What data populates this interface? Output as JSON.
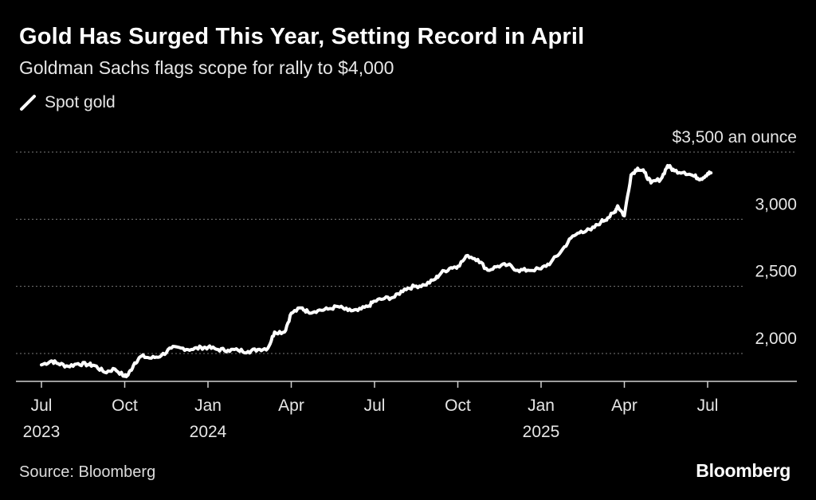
{
  "title": "Gold Has Surged This Year, Setting Record in April",
  "subtitle": "Goldman Sachs flags scope for rally to $4,000",
  "source": "Source: Bloomberg",
  "brand": "Bloomberg",
  "colors": {
    "background": "#000000",
    "line": "#ffffff",
    "grid": "#7a7a7a",
    "text": "#e6e6e6"
  },
  "chart_data": {
    "type": "line",
    "title": "Gold Has Surged This Year, Setting Record in April",
    "subtitle": "Goldman Sachs flags scope for rally to $4,000",
    "xlabel": "",
    "ylabel": "",
    "ylim": [
      1720,
      3500
    ],
    "xlim": [
      2023.5,
      2025.7
    ],
    "grid": true,
    "legend": "top-left",
    "y_unit_label": "an ounce",
    "yticks": [
      {
        "value": 3500,
        "label": "$3,500 an ounce"
      },
      {
        "value": 3000,
        "label": "3,000"
      },
      {
        "value": 2500,
        "label": "2,500"
      },
      {
        "value": 2000,
        "label": "2,000"
      }
    ],
    "xticks": [
      {
        "value": 2023.5,
        "label": "Jul",
        "year": "2023"
      },
      {
        "value": 2023.75,
        "label": "Oct",
        "year": ""
      },
      {
        "value": 2024.0,
        "label": "Jan",
        "year": "2024"
      },
      {
        "value": 2024.25,
        "label": "Apr",
        "year": ""
      },
      {
        "value": 2024.5,
        "label": "Jul",
        "year": ""
      },
      {
        "value": 2024.75,
        "label": "Oct",
        "year": ""
      },
      {
        "value": 2025.0,
        "label": "Jan",
        "year": "2025"
      },
      {
        "value": 2025.25,
        "label": "Apr",
        "year": ""
      },
      {
        "value": 2025.5,
        "label": "Jul",
        "year": ""
      }
    ],
    "series": [
      {
        "name": "Spot gold",
        "x": [
          2023.5,
          2023.53,
          2023.55,
          2023.58,
          2023.61,
          2023.64,
          2023.66,
          2023.69,
          2023.72,
          2023.75,
          2023.76,
          2023.78,
          2023.8,
          2023.83,
          2023.86,
          2023.89,
          2023.92,
          2023.95,
          2023.98,
          2024.0,
          2024.03,
          2024.06,
          2024.09,
          2024.12,
          2024.15,
          2024.18,
          2024.2,
          2024.23,
          2024.25,
          2024.28,
          2024.3,
          2024.33,
          2024.36,
          2024.39,
          2024.42,
          2024.45,
          2024.48,
          2024.5,
          2024.53,
          2024.56,
          2024.59,
          2024.62,
          2024.65,
          2024.68,
          2024.7,
          2024.73,
          2024.75,
          2024.78,
          2024.81,
          2024.84,
          2024.87,
          2024.9,
          2024.93,
          2024.96,
          2025.0,
          2025.03,
          2025.06,
          2025.09,
          2025.12,
          2025.15,
          2025.18,
          2025.2,
          2025.22,
          2025.23,
          2025.25,
          2025.27,
          2025.29,
          2025.31,
          2025.33,
          2025.36,
          2025.38,
          2025.4,
          2025.43,
          2025.46,
          2025.48,
          2025.5,
          2025.51
        ],
        "values": [
          1915,
          1945,
          1925,
          1905,
          1925,
          1918,
          1910,
          1860,
          1885,
          1830,
          1840,
          1930,
          1980,
          1965,
          1985,
          2040,
          2040,
          2030,
          2045,
          2045,
          2030,
          2025,
          2025,
          2015,
          2030,
          2040,
          2160,
          2160,
          2300,
          2340,
          2310,
          2320,
          2330,
          2350,
          2320,
          2320,
          2350,
          2390,
          2410,
          2420,
          2480,
          2500,
          2510,
          2550,
          2600,
          2640,
          2650,
          2730,
          2700,
          2620,
          2650,
          2660,
          2620,
          2620,
          2630,
          2680,
          2760,
          2860,
          2910,
          2920,
          2980,
          3010,
          3050,
          3100,
          3025,
          3330,
          3380,
          3350,
          3270,
          3300,
          3400,
          3360,
          3350,
          3320,
          3300,
          3340,
          3345
        ]
      }
    ]
  }
}
